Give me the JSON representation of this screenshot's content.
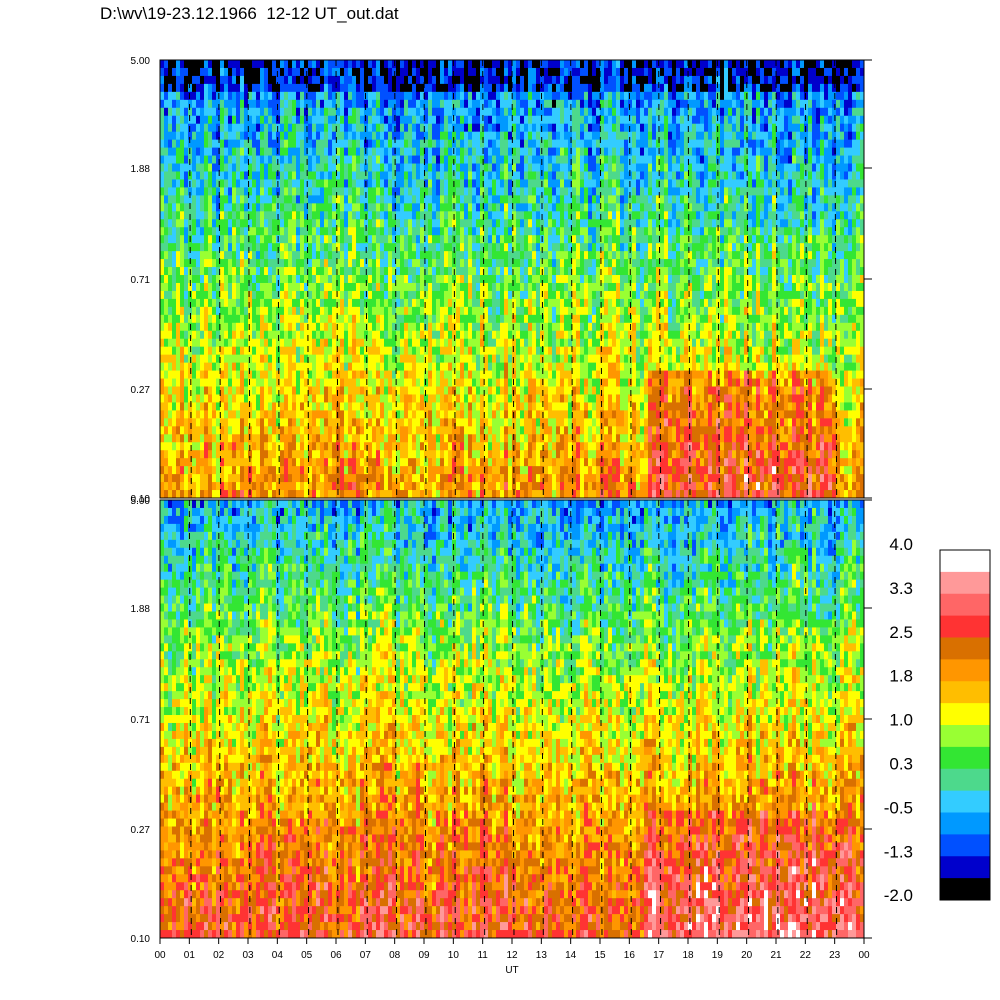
{
  "title": "D:\\wv\\19-23.12.1966  12-12 UT_out.dat",
  "chart_data": [
    {
      "type": "heatmap",
      "panel": "top",
      "y_ticks": [
        "5.00",
        "1.88",
        "0.71",
        "0.27",
        "0.10"
      ],
      "y_scale": "log",
      "ylim": [
        0.1,
        5.0
      ],
      "x_ticks": [
        "00",
        "01",
        "02",
        "03",
        "04",
        "05",
        "06",
        "07",
        "08",
        "09",
        "10",
        "11",
        "12",
        "13",
        "14",
        "15",
        "16",
        "17",
        "18",
        "19",
        "20",
        "21",
        "22",
        "23",
        "00"
      ],
      "xlim_hours": [
        0,
        24
      ],
      "dashed_gridlines": "hourly, vertical",
      "dominant_levels": "top band blue/cyan (-1.3 to -0.5), middle cyan/green/yellow (0 to 1), bottom yellow/orange (1 to 2.2)"
    },
    {
      "type": "heatmap",
      "panel": "bottom",
      "y_ticks": [
        "5.00",
        "1.88",
        "0.71",
        "0.27",
        "0.10"
      ],
      "y_scale": "log",
      "ylim": [
        0.1,
        5.0
      ],
      "x_ticks": [
        "00",
        "01",
        "02",
        "03",
        "04",
        "05",
        "06",
        "07",
        "08",
        "09",
        "10",
        "11",
        "12",
        "13",
        "14",
        "15",
        "16",
        "17",
        "18",
        "19",
        "20",
        "21",
        "22",
        "23",
        "00"
      ],
      "xlim_hours": [
        0,
        24
      ],
      "xlabel": "UT",
      "dashed_gridlines": "hourly, vertical",
      "dominant_levels": "top band blue/green (-1.3 to 0.3), middle yellow/orange (1 to 2), bottom orange/red (2 to 3)"
    }
  ],
  "colorbar": {
    "labels": [
      "4.0",
      "3.3",
      "2.5",
      "1.8",
      "1.0",
      "0.3",
      "-0.5",
      "-1.3",
      "-2.0"
    ],
    "colors_top_to_bottom": [
      "#ffffff",
      "#ff9999",
      "#ff6666",
      "#ff3333",
      "#d97000",
      "#ff9600",
      "#ffbe00",
      "#ffff00",
      "#99ff33",
      "#33e633",
      "#4dd98c",
      "#33ccff",
      "#0099ff",
      "#0050ff",
      "#0000cc",
      "#000000"
    ]
  }
}
